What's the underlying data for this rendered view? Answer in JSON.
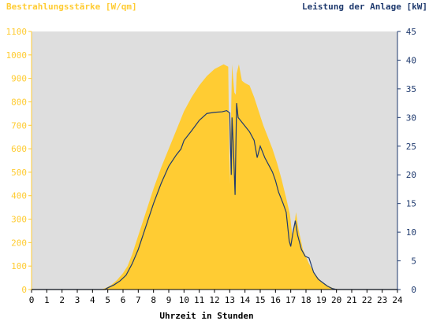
{
  "chart_data": {
    "type": "area",
    "y_left_label": "Bestrahlungsstärke [W/qm]",
    "y_right_label": "Leistung der Anlage [kW]",
    "xlabel": "Uhrzeit in Stunden",
    "x_ticks": [
      "0",
      "1",
      "2",
      "3",
      "4",
      "5",
      "6",
      "7",
      "8",
      "9",
      "10",
      "11",
      "12",
      "13",
      "14",
      "15",
      "16",
      "17",
      "18",
      "19",
      "20",
      "21",
      "22",
      "23",
      "24"
    ],
    "xlim": [
      0,
      24
    ],
    "y_left_ticks": [
      "0",
      "100",
      "200",
      "300",
      "400",
      "500",
      "600",
      "700",
      "800",
      "900",
      "1000",
      "1100"
    ],
    "y_left_lim": [
      0,
      1100
    ],
    "y_right_ticks": [
      "0",
      "5",
      "10",
      "15",
      "20",
      "25",
      "30",
      "35",
      "40",
      "45"
    ],
    "y_right_lim": [
      0,
      45
    ],
    "colors": {
      "irradiance": "#ffcc33",
      "power": "#1f3a6e",
      "left_axis_text": "#ffcc33",
      "right_axis_text": "#1f3a6e",
      "plot_background": "#dedede"
    },
    "series": [
      {
        "axis": "left",
        "style": "filled-area",
        "points": [
          [
            0,
            0
          ],
          [
            4.6,
            0
          ],
          [
            4.9,
            8
          ],
          [
            5.2,
            18
          ],
          [
            5.6,
            40
          ],
          [
            6.0,
            70
          ],
          [
            6.3,
            100
          ],
          [
            6.6,
            150
          ],
          [
            7.0,
            230
          ],
          [
            7.5,
            330
          ],
          [
            8.0,
            430
          ],
          [
            8.5,
            520
          ],
          [
            9.0,
            600
          ],
          [
            9.5,
            680
          ],
          [
            10.0,
            760
          ],
          [
            10.5,
            820
          ],
          [
            11.0,
            870
          ],
          [
            11.5,
            910
          ],
          [
            12.0,
            940
          ],
          [
            12.3,
            950
          ],
          [
            12.6,
            960
          ],
          [
            12.9,
            950
          ],
          [
            13.0,
            450
          ],
          [
            13.15,
            960
          ],
          [
            13.3,
            840
          ],
          [
            13.4,
            830
          ],
          [
            13.45,
            920
          ],
          [
            13.6,
            960
          ],
          [
            13.8,
            890
          ],
          [
            14.0,
            880
          ],
          [
            14.3,
            870
          ],
          [
            14.6,
            820
          ],
          [
            14.9,
            760
          ],
          [
            15.2,
            700
          ],
          [
            15.5,
            650
          ],
          [
            15.8,
            600
          ],
          [
            16.1,
            540
          ],
          [
            16.4,
            470
          ],
          [
            16.7,
            390
          ],
          [
            16.95,
            320
          ],
          [
            17.1,
            230
          ],
          [
            17.2,
            260
          ],
          [
            17.35,
            330
          ],
          [
            17.5,
            260
          ],
          [
            17.8,
            170
          ],
          [
            18.2,
            110
          ],
          [
            18.6,
            65
          ],
          [
            19.0,
            35
          ],
          [
            19.4,
            18
          ],
          [
            19.8,
            5
          ],
          [
            20.2,
            0
          ],
          [
            24,
            0
          ]
        ]
      },
      {
        "axis": "right",
        "style": "line",
        "points": [
          [
            0,
            0
          ],
          [
            4.8,
            0
          ],
          [
            5.0,
            0.3
          ],
          [
            5.4,
            0.8
          ],
          [
            5.8,
            1.5
          ],
          [
            6.2,
            2.5
          ],
          [
            6.6,
            4.5
          ],
          [
            7.0,
            7
          ],
          [
            7.5,
            11
          ],
          [
            8.0,
            15
          ],
          [
            8.5,
            18.5
          ],
          [
            9.0,
            21.5
          ],
          [
            9.5,
            23.5
          ],
          [
            9.8,
            24.5
          ],
          [
            10.0,
            26
          ],
          [
            10.5,
            27.7
          ],
          [
            11.0,
            29.5
          ],
          [
            11.5,
            30.7
          ],
          [
            12.0,
            30.9
          ],
          [
            12.5,
            31.0
          ],
          [
            12.8,
            31.2
          ],
          [
            13.0,
            30.8
          ],
          [
            13.05,
            25
          ],
          [
            13.1,
            20
          ],
          [
            13.15,
            30
          ],
          [
            13.25,
            24
          ],
          [
            13.35,
            16.5
          ],
          [
            13.45,
            32.5
          ],
          [
            13.55,
            30
          ],
          [
            13.7,
            29.5
          ],
          [
            14.0,
            28.5
          ],
          [
            14.3,
            27.5
          ],
          [
            14.6,
            26
          ],
          [
            14.8,
            23
          ],
          [
            15.0,
            25
          ],
          [
            15.3,
            23
          ],
          [
            15.6,
            21.5
          ],
          [
            15.8,
            20.5
          ],
          [
            16.0,
            19
          ],
          [
            16.2,
            17
          ],
          [
            16.5,
            15
          ],
          [
            16.7,
            13.5
          ],
          [
            16.9,
            8.5
          ],
          [
            17.0,
            7.5
          ],
          [
            17.15,
            10
          ],
          [
            17.3,
            12
          ],
          [
            17.45,
            9.5
          ],
          [
            17.7,
            7
          ],
          [
            17.95,
            5.8
          ],
          [
            18.2,
            5.5
          ],
          [
            18.5,
            3
          ],
          [
            18.8,
            1.8
          ],
          [
            19.1,
            1.2
          ],
          [
            19.4,
            0.6
          ],
          [
            19.7,
            0.2
          ],
          [
            20.0,
            0
          ],
          [
            24,
            0
          ]
        ]
      }
    ]
  }
}
